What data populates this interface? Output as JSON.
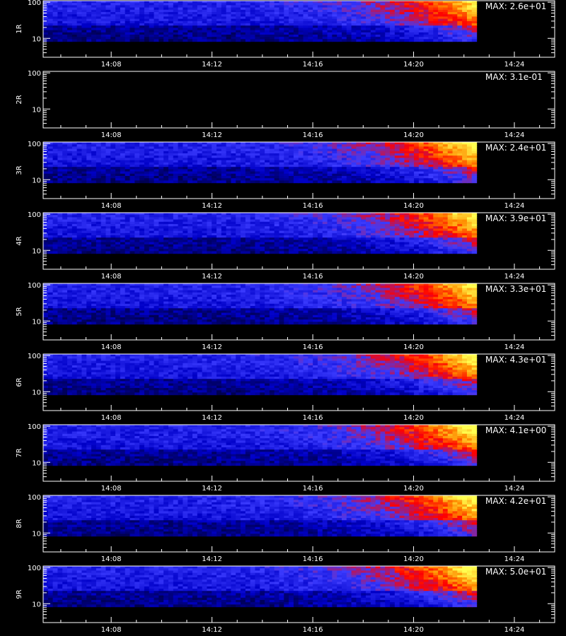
{
  "chart_data": {
    "type": "heatmap",
    "x_ticks": [
      "14:08",
      "14:12",
      "14:16",
      "14:20",
      "14:24"
    ],
    "y_ticks": [
      "100",
      "10"
    ],
    "y_scale": "log",
    "colormap": [
      "#000000",
      "#0000c8",
      "#3c3cff",
      "#ff0000",
      "#ff8c00",
      "#ffff50"
    ],
    "data_ends_at": "14:22:30",
    "panels": [
      {
        "label": "1R",
        "max_label": "MAX: 2.6e+01",
        "intensity": 0.8
      },
      {
        "label": "2R",
        "max_label": "MAX: 3.1e-01",
        "intensity": 0.0
      },
      {
        "label": "3R",
        "max_label": "MAX: 2.4e+01",
        "intensity": 0.9
      },
      {
        "label": "4R",
        "max_label": "MAX: 3.9e+01",
        "intensity": 0.85
      },
      {
        "label": "5R",
        "max_label": "MAX: 3.3e+01",
        "intensity": 0.85
      },
      {
        "label": "6R",
        "max_label": "MAX: 4.3e+01",
        "intensity": 0.85
      },
      {
        "label": "7R",
        "max_label": "MAX: 4.1e+00",
        "intensity": 0.9
      },
      {
        "label": "8R",
        "max_label": "MAX: 4.2e+01",
        "intensity": 0.9
      },
      {
        "label": "9R",
        "max_label": "MAX: 5.0e+01",
        "intensity": 0.9
      }
    ]
  }
}
